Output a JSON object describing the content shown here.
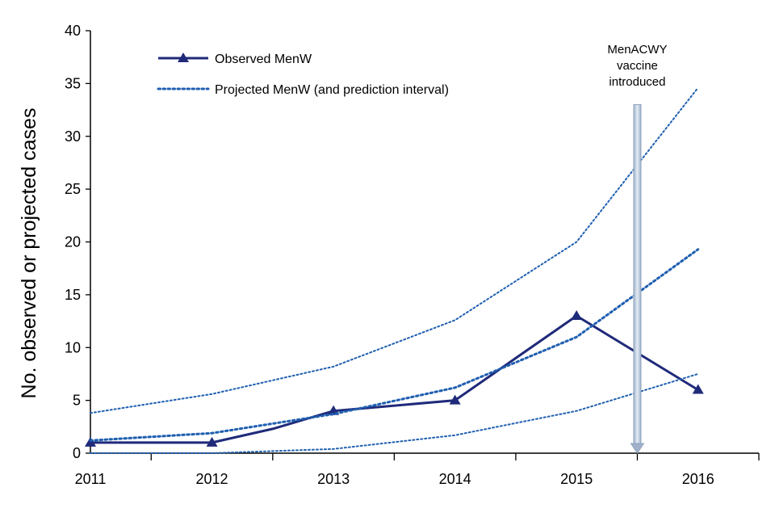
{
  "chart_data": {
    "type": "line",
    "title": "",
    "xlabel": "",
    "ylabel": "No. observed or projected cases",
    "xlim": [
      2011,
      2016.5
    ],
    "ylim": [
      0,
      40
    ],
    "x_ticks": [
      "2011",
      "2012",
      "2013",
      "2014",
      "2015",
      "2016"
    ],
    "y_ticks": [
      "0",
      "5",
      "10",
      "15",
      "20",
      "25",
      "30",
      "35",
      "40"
    ],
    "grid": false,
    "legend_position": "top-left",
    "colors": {
      "observed": "#1f2a7a",
      "projected": "#1f5fb0",
      "annotation_arrow": "#b8c8dc"
    },
    "series": [
      {
        "name": "Observed MenW",
        "style": "solid-triangle-markers",
        "x": [
          2011,
          2012,
          2012.5,
          2013,
          2014,
          2015,
          2016
        ],
        "y": [
          1,
          1,
          2.3,
          4,
          5,
          13,
          6
        ],
        "marker_indices": [
          0,
          1,
          3,
          4,
          5,
          6
        ]
      },
      {
        "name": "Projected MenW (and prediction interval)",
        "style": "dotted",
        "x": [
          2011,
          2012,
          2013,
          2014,
          2015,
          2016
        ],
        "y": [
          1.2,
          1.9,
          3.7,
          6.2,
          11,
          19.3
        ]
      },
      {
        "name": "Upper prediction interval",
        "style": "dotted-thin",
        "x": [
          2011,
          2012,
          2013,
          2014,
          2015,
          2016
        ],
        "y": [
          3.8,
          5.6,
          8.2,
          12.6,
          20,
          34.6
        ]
      },
      {
        "name": "Lower prediction interval",
        "style": "dotted-thin",
        "x": [
          2011,
          2012,
          2013,
          2014,
          2015,
          2016
        ],
        "y": [
          0,
          0,
          0.4,
          1.7,
          4,
          7.5
        ]
      }
    ],
    "annotations": [
      {
        "lines": [
          "MenACWY",
          "vaccine",
          "introduced"
        ],
        "x": 2015.5,
        "arrow_from_y": 33,
        "arrow_to_y": 0
      }
    ]
  }
}
